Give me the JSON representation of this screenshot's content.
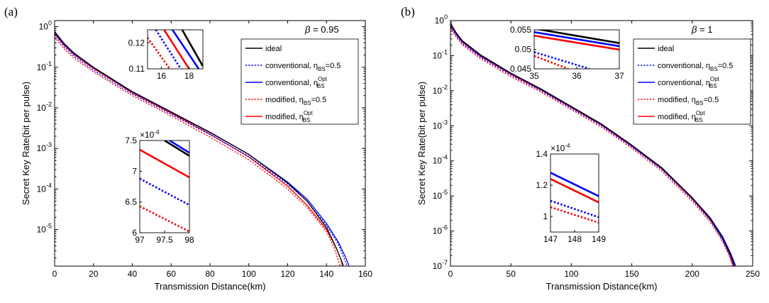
{
  "chart_data": [
    {
      "panel": "(a)",
      "type": "line",
      "annotation": "β = 0.95",
      "xlabel": "Transmission Distance(km)",
      "ylabel": "Secret Key Rate(bit per pulse)",
      "xlim": [
        0,
        160
      ],
      "ylim_log10": [
        -5.9,
        0.15
      ],
      "yscale": "log",
      "xticks": [
        "0",
        "20",
        "40",
        "60",
        "80",
        "100",
        "120",
        "140",
        "160"
      ],
      "yticks": [
        {
          "base": "10",
          "exp": "0"
        },
        {
          "base": "10",
          "exp": "-1"
        },
        {
          "base": "10",
          "exp": "-2"
        },
        {
          "base": "10",
          "exp": "-3"
        },
        {
          "base": "10",
          "exp": "-4"
        },
        {
          "base": "10",
          "exp": "-5"
        }
      ],
      "legend": [
        {
          "name": "ideal",
          "sub": "",
          "sup": "",
          "suffix": "",
          "color": "#000000",
          "dash": "solid"
        },
        {
          "name": "conventional, η",
          "sub": "BS",
          "sup": "",
          "suffix": "=0.5",
          "color": "#0000ff",
          "dash": "dotted"
        },
        {
          "name": "conventional, η",
          "sub": "BS",
          "sup": "Opt",
          "suffix": "",
          "color": "#0000ff",
          "dash": "solid"
        },
        {
          "name": "modified, η",
          "sub": "BS",
          "sup": "",
          "suffix": "=0.5",
          "color": "#ff0000",
          "dash": "dotted"
        },
        {
          "name": "modified, η",
          "sub": "BS",
          "sup": "Opt",
          "suffix": "",
          "color": "#ff0000",
          "dash": "solid"
        }
      ],
      "series": [
        {
          "name": "ideal",
          "x": [
            0,
            5,
            10,
            20,
            30,
            40,
            60,
            80,
            100,
            120,
            130,
            140,
            145,
            148,
            149
          ],
          "log10y": [
            -0.12,
            -0.42,
            -0.65,
            -1.0,
            -1.3,
            -1.6,
            -2.1,
            -2.6,
            -3.15,
            -3.85,
            -4.3,
            -4.95,
            -5.45,
            -5.8,
            -5.95
          ]
        },
        {
          "name": "conventional, ηBS=0.5",
          "x": [
            0,
            5,
            10,
            20,
            30,
            40,
            60,
            80,
            100,
            120,
            130,
            140,
            146,
            149,
            151
          ],
          "log10y": [
            -0.2,
            -0.5,
            -0.73,
            -1.07,
            -1.37,
            -1.66,
            -2.16,
            -2.66,
            -3.2,
            -3.88,
            -4.3,
            -4.9,
            -5.35,
            -5.7,
            -5.95
          ]
        },
        {
          "name": "conventional, ηBS^Opt",
          "x": [
            0,
            5,
            10,
            20,
            30,
            40,
            60,
            80,
            100,
            120,
            130,
            140,
            146,
            150,
            152
          ],
          "log10y": [
            -0.14,
            -0.44,
            -0.67,
            -1.01,
            -1.31,
            -1.61,
            -2.11,
            -2.61,
            -3.15,
            -3.83,
            -4.25,
            -4.85,
            -5.3,
            -5.7,
            -5.95
          ]
        },
        {
          "name": "modified, ηBS=0.5",
          "x": [
            0,
            5,
            10,
            20,
            30,
            40,
            60,
            80,
            100,
            120,
            130,
            140,
            144,
            146,
            147.5
          ],
          "log10y": [
            -0.26,
            -0.55,
            -0.78,
            -1.11,
            -1.41,
            -1.7,
            -2.2,
            -2.72,
            -3.28,
            -4.0,
            -4.45,
            -5.05,
            -5.45,
            -5.75,
            -5.95
          ]
        },
        {
          "name": "modified, ηBS^Opt",
          "x": [
            0,
            5,
            10,
            20,
            30,
            40,
            60,
            80,
            100,
            120,
            130,
            140,
            145,
            147.5,
            148.5
          ],
          "log10y": [
            -0.17,
            -0.46,
            -0.69,
            -1.03,
            -1.33,
            -1.63,
            -2.13,
            -2.65,
            -3.21,
            -3.93,
            -4.4,
            -5.0,
            -5.45,
            -5.75,
            -5.95
          ]
        }
      ],
      "insets": [
        {
          "xlim": [
            15,
            19
          ],
          "ylim": [
            0.11,
            0.125
          ],
          "xticks": [
            "16",
            "18"
          ],
          "yticks": [
            "0.11",
            "0.12"
          ],
          "yexp": "",
          "lines": [
            {
              "series": "ideal",
              "x": [
                17.5,
                19
              ],
              "y": [
                0.125,
                0.111
              ]
            },
            {
              "series": "conventional, ηBS^Opt",
              "x": [
                16.8,
                18.7
              ],
              "y": [
                0.125,
                0.11
              ]
            },
            {
              "series": "modified, ηBS^Opt",
              "x": [
                16.2,
                18.0
              ],
              "y": [
                0.125,
                0.11
              ]
            },
            {
              "series": "conventional, ηBS=0.5",
              "x": [
                15.6,
                17.4
              ],
              "y": [
                0.125,
                0.11
              ]
            },
            {
              "series": "modified, ηBS=0.5",
              "x": [
                15,
                16.6
              ],
              "y": [
                0.122,
                0.11
              ]
            }
          ]
        },
        {
          "xlim": [
            97,
            98
          ],
          "ylim": [
            6,
            7.5
          ],
          "xticks": [
            "97",
            "97.5",
            "98"
          ],
          "yticks": [
            "6",
            "6.5",
            "7",
            "7.5"
          ],
          "yexp": "-4",
          "lines": [
            {
              "series": "ideal",
              "x": [
                97.5,
                98
              ],
              "y": [
                7.5,
                7.25
              ]
            },
            {
              "series": "conventional, ηBS^Opt",
              "x": [
                97.6,
                98
              ],
              "y": [
                7.5,
                7.3
              ]
            },
            {
              "series": "modified, ηBS^Opt",
              "x": [
                97,
                98
              ],
              "y": [
                7.35,
                6.9
              ]
            },
            {
              "series": "conventional, ηBS=0.5",
              "x": [
                97,
                98
              ],
              "y": [
                6.88,
                6.45
              ]
            },
            {
              "series": "modified, ηBS=0.5",
              "x": [
                97,
                98
              ],
              "y": [
                6.43,
                6.02
              ]
            }
          ]
        }
      ]
    },
    {
      "panel": "(b)",
      "type": "line",
      "annotation": "β = 1",
      "xlabel": "Transmission Distance(km)",
      "ylabel": "Secret Key Rate(bit per pulse)",
      "xlim": [
        0,
        250
      ],
      "ylim_log10": [
        -7,
        0
      ],
      "yscale": "log",
      "xticks": [
        "0",
        "50",
        "100",
        "150",
        "200",
        "250"
      ],
      "yticks": [
        {
          "base": "10",
          "exp": "0"
        },
        {
          "base": "10",
          "exp": "-1"
        },
        {
          "base": "10",
          "exp": "-2"
        },
        {
          "base": "10",
          "exp": "-3"
        },
        {
          "base": "10",
          "exp": "-4"
        },
        {
          "base": "10",
          "exp": "-5"
        },
        {
          "base": "10",
          "exp": "-6"
        },
        {
          "base": "10",
          "exp": "-7"
        }
      ],
      "legend": [
        {
          "name": "ideal",
          "sub": "",
          "sup": "",
          "suffix": "",
          "color": "#000000",
          "dash": "solid"
        },
        {
          "name": "conventional, η",
          "sub": "BS",
          "sup": "",
          "suffix": "=0.5",
          "color": "#0000ff",
          "dash": "dotted"
        },
        {
          "name": "conventional, η",
          "sub": "BS",
          "sup": "Opt",
          "suffix": "",
          "color": "#0000ff",
          "dash": "solid"
        },
        {
          "name": "modified, η",
          "sub": "BS",
          "sup": "",
          "suffix": "=0.5",
          "color": "#ff0000",
          "dash": "dotted"
        },
        {
          "name": "modified, η",
          "sub": "BS",
          "sup": "Opt",
          "suffix": "",
          "color": "#ff0000",
          "dash": "solid"
        }
      ],
      "series": [
        {
          "name": "ideal",
          "x": [
            0,
            5,
            10,
            25,
            50,
            75,
            100,
            125,
            150,
            175,
            200,
            215,
            225,
            232,
            235
          ],
          "log10y": [
            -0.08,
            -0.36,
            -0.58,
            -0.98,
            -1.5,
            -1.95,
            -2.45,
            -2.95,
            -3.55,
            -4.2,
            -5.05,
            -5.65,
            -6.2,
            -6.7,
            -7.0
          ]
        },
        {
          "name": "conventional, ηBS=0.5",
          "x": [
            0,
            5,
            10,
            25,
            50,
            75,
            100,
            125,
            150,
            175,
            200,
            215,
            225,
            232,
            235
          ],
          "log10y": [
            -0.18,
            -0.44,
            -0.66,
            -1.05,
            -1.56,
            -2.0,
            -2.5,
            -3.0,
            -3.6,
            -4.25,
            -5.1,
            -5.7,
            -6.25,
            -6.75,
            -7.05
          ]
        },
        {
          "name": "conventional, ηBS^Opt",
          "x": [
            0,
            5,
            10,
            25,
            50,
            75,
            100,
            125,
            150,
            175,
            200,
            215,
            225,
            232,
            236
          ],
          "log10y": [
            -0.1,
            -0.38,
            -0.6,
            -1.0,
            -1.51,
            -1.96,
            -2.46,
            -2.96,
            -3.56,
            -4.21,
            -5.05,
            -5.63,
            -6.15,
            -6.65,
            -7.0
          ]
        },
        {
          "name": "modified, ηBS=0.5",
          "x": [
            0,
            5,
            10,
            25,
            50,
            75,
            100,
            125,
            150,
            175,
            200,
            215,
            225,
            231,
            234
          ],
          "log10y": [
            -0.22,
            -0.48,
            -0.7,
            -1.09,
            -1.6,
            -2.04,
            -2.54,
            -3.04,
            -3.64,
            -4.3,
            -5.15,
            -5.75,
            -6.3,
            -6.75,
            -7.05
          ]
        },
        {
          "name": "modified, ηBS^Opt",
          "x": [
            0,
            5,
            10,
            25,
            50,
            75,
            100,
            125,
            150,
            175,
            200,
            215,
            225,
            231,
            234
          ],
          "log10y": [
            -0.13,
            -0.4,
            -0.62,
            -1.02,
            -1.53,
            -1.98,
            -2.48,
            -2.98,
            -3.58,
            -4.23,
            -5.08,
            -5.68,
            -6.2,
            -6.68,
            -7.0
          ]
        }
      ],
      "insets": [
        {
          "xlim": [
            35,
            37
          ],
          "ylim": [
            0.045,
            0.055
          ],
          "xticks": [
            "35",
            "36",
            "37"
          ],
          "yticks": [
            "0.045",
            "0.05",
            "0.055"
          ],
          "yexp": "",
          "lines": [
            {
              "series": "ideal",
              "x": [
                35,
                37
              ],
              "y": [
                0.0553,
                0.0516
              ]
            },
            {
              "series": "conventional, ηBS^Opt",
              "x": [
                35,
                37
              ],
              "y": [
                0.0544,
                0.0508
              ]
            },
            {
              "series": "modified, ηBS^Opt",
              "x": [
                35,
                37
              ],
              "y": [
                0.0535,
                0.0499
              ]
            },
            {
              "series": "conventional, ηBS=0.5",
              "x": [
                35,
                36.3
              ],
              "y": [
                0.0493,
                0.045
              ]
            },
            {
              "series": "modified, ηBS=0.5",
              "x": [
                35,
                35.8
              ],
              "y": [
                0.0483,
                0.045
              ]
            }
          ]
        },
        {
          "xlim": [
            147,
            149
          ],
          "ylim": [
            0.9,
            1.4
          ],
          "xticks": [
            "147",
            "148",
            "149"
          ],
          "yticks": [
            "1",
            "1.2",
            "1.4"
          ],
          "yexp": "-4",
          "lines": [
            {
              "series": "conventional, ηBS^Opt",
              "x": [
                147,
                149
              ],
              "y": [
                1.28,
                1.13
              ]
            },
            {
              "series": "modified, ηBS^Opt",
              "x": [
                147,
                149
              ],
              "y": [
                1.24,
                1.09
              ]
            },
            {
              "series": "conventional, ηBS=0.5",
              "x": [
                147,
                149
              ],
              "y": [
                1.1,
                0.995
              ]
            },
            {
              "series": "modified, ηBS=0.5",
              "x": [
                147,
                149
              ],
              "y": [
                1.06,
                0.96
              ]
            }
          ]
        }
      ]
    }
  ]
}
